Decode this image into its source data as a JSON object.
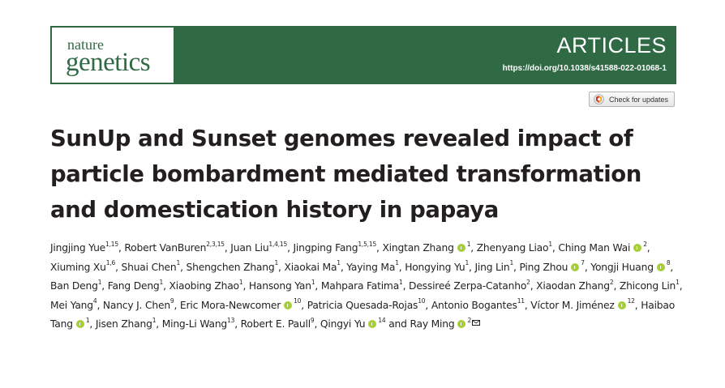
{
  "header": {
    "logo_line1": "nature",
    "logo_line2": "genetics",
    "section": "ARTICLES",
    "doi": "https://doi.org/10.1038/s41588-022-01068-1",
    "colors": {
      "bar": "#2f6a44",
      "orcid": "#a6ce39"
    }
  },
  "check_updates": {
    "label": "Check for updates",
    "icon": "crossmark-icon"
  },
  "article": {
    "title": "SunUp and Sunset genomes revealed impact of particle bombardment mediated transformation and domestication history in papaya"
  },
  "authors": [
    {
      "name": "Jingjing Yue",
      "aff": "1,15"
    },
    {
      "name": "Robert VanBuren",
      "aff": "2,3,15"
    },
    {
      "name": "Juan Liu",
      "aff": "1,4,15"
    },
    {
      "name": "Jingping Fang",
      "aff": "1,5,15"
    },
    {
      "name": "Xingtan Zhang",
      "aff": "1",
      "orcid": true
    },
    {
      "name": "Zhenyang Liao",
      "aff": "1"
    },
    {
      "name": "Ching Man Wai",
      "aff": "2",
      "orcid": true
    },
    {
      "name": "Xiuming Xu",
      "aff": "1,6"
    },
    {
      "name": "Shuai Chen",
      "aff": "1"
    },
    {
      "name": "Shengchen Zhang",
      "aff": "1"
    },
    {
      "name": "Xiaokai Ma",
      "aff": "1"
    },
    {
      "name": "Yaying Ma",
      "aff": "1"
    },
    {
      "name": "Hongying Yu",
      "aff": "1"
    },
    {
      "name": "Jing Lin",
      "aff": "1"
    },
    {
      "name": "Ping Zhou",
      "aff": "7",
      "orcid": true
    },
    {
      "name": "Yongji Huang",
      "aff": "8",
      "orcid": true
    },
    {
      "name": "Ban Deng",
      "aff": "1"
    },
    {
      "name": "Fang Deng",
      "aff": "1"
    },
    {
      "name": "Xiaobing Zhao",
      "aff": "1"
    },
    {
      "name": "Hansong Yan",
      "aff": "1"
    },
    {
      "name": "Mahpara Fatima",
      "aff": "1"
    },
    {
      "name": "Dessireé Zerpa-Catanho",
      "aff": "2"
    },
    {
      "name": "Xiaodan Zhang",
      "aff": "2"
    },
    {
      "name": "Zhicong Lin",
      "aff": "1"
    },
    {
      "name": "Mei Yang",
      "aff": "4"
    },
    {
      "name": "Nancy J. Chen",
      "aff": "9"
    },
    {
      "name": "Eric Mora-Newcomer",
      "aff": "10",
      "orcid": true
    },
    {
      "name": "Patricia Quesada-Rojas",
      "aff": "10"
    },
    {
      "name": "Antonio Bogantes",
      "aff": "11"
    },
    {
      "name": "Víctor M. Jiménez",
      "aff": "12",
      "orcid": true
    },
    {
      "name": "Haibao Tang",
      "aff": "1",
      "orcid": true
    },
    {
      "name": "Jisen Zhang",
      "aff": "1"
    },
    {
      "name": "Ming-Li Wang",
      "aff": "13"
    },
    {
      "name": "Robert E. Paull",
      "aff": "9"
    },
    {
      "name": "Qingyi Yu",
      "aff": "14",
      "orcid": true
    },
    {
      "name": "Ray Ming",
      "aff": "2",
      "orcid": true,
      "corresponding": true
    }
  ],
  "connector_and": "and"
}
